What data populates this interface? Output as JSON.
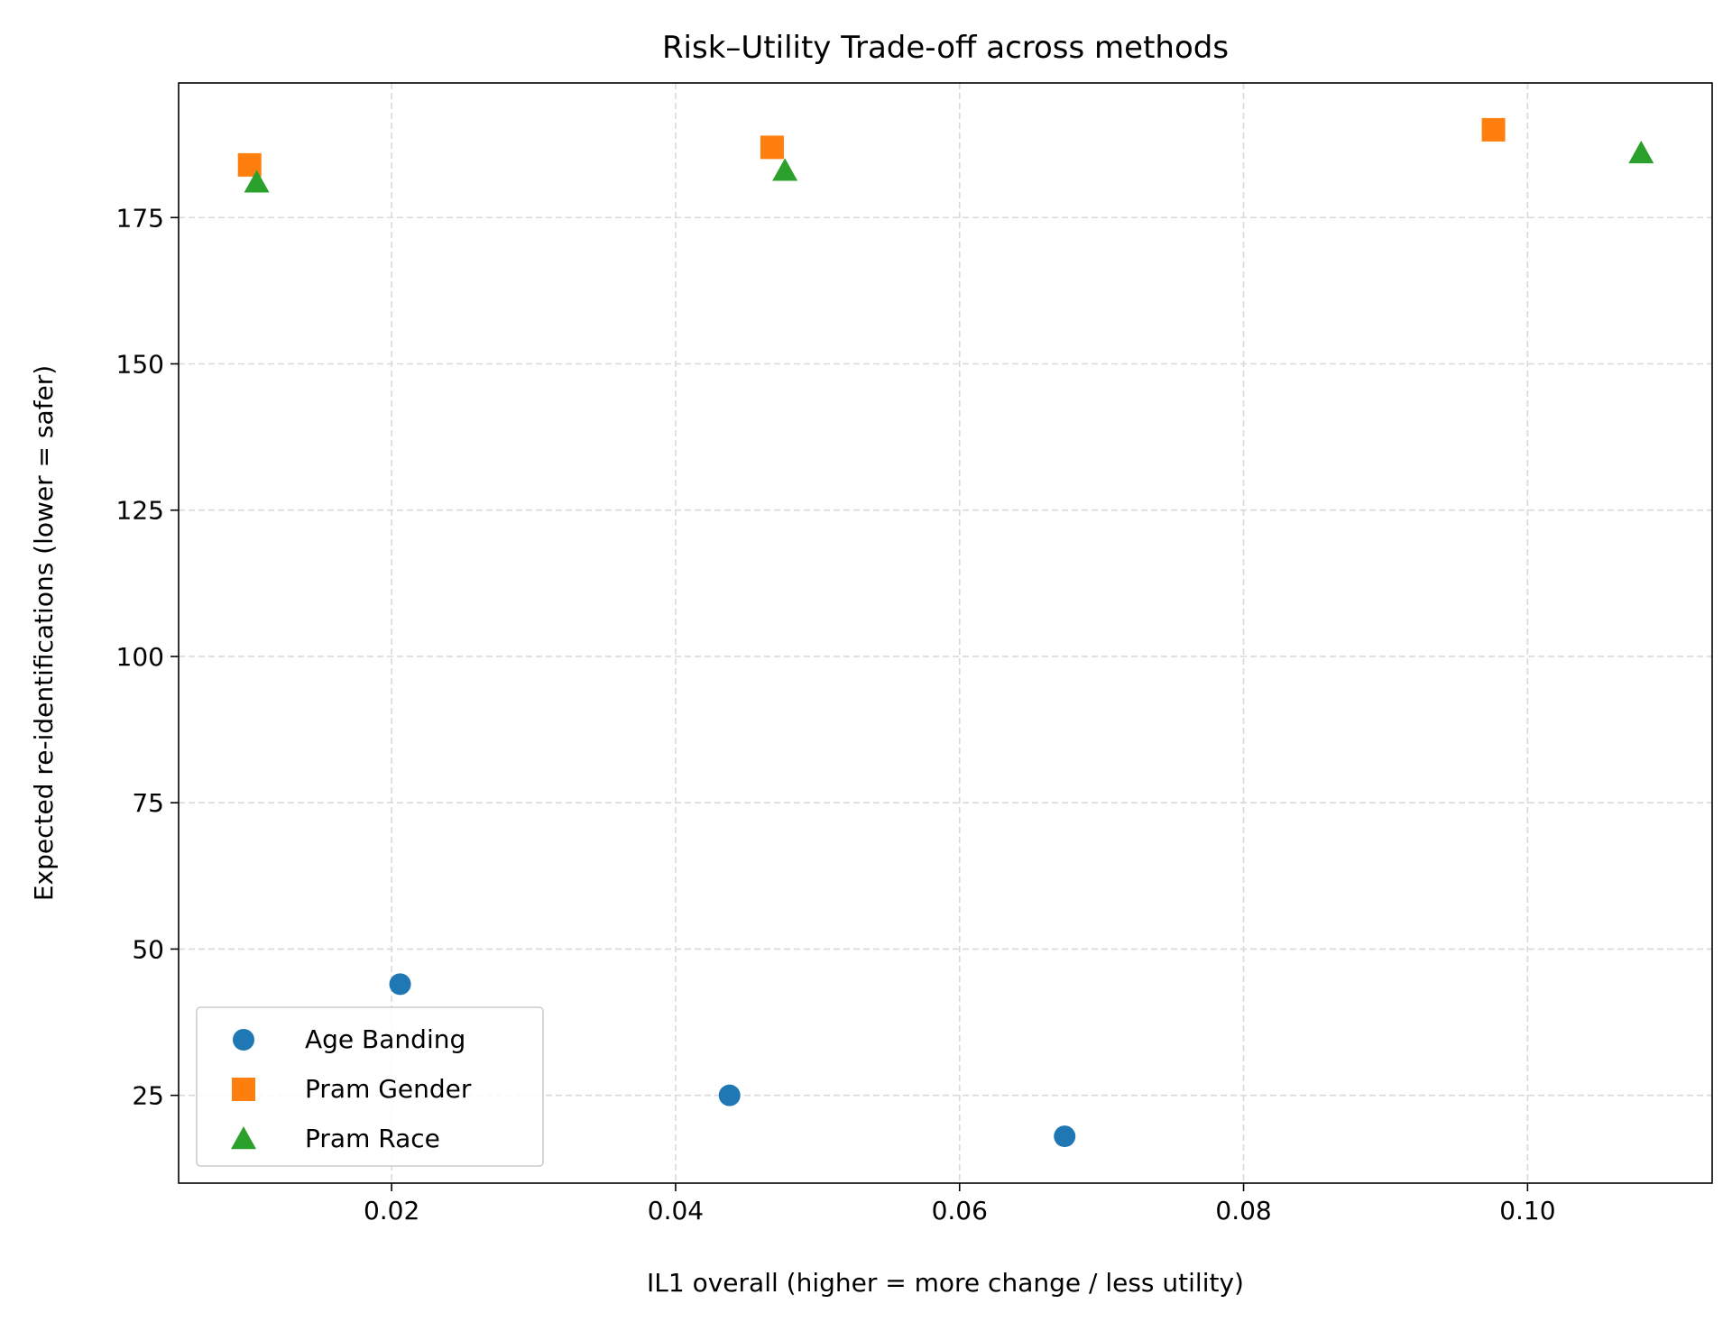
{
  "chart_data": {
    "type": "scatter",
    "title": "Risk–Utility Trade-off across methods",
    "xlabel": "IL1 overall (higher = more change / less utility)",
    "ylabel": "Expected re-identifications (lower = safer)",
    "xlim": [
      0.005,
      0.113
    ],
    "ylim": [
      10,
      198
    ],
    "xticks": [
      0.02,
      0.04,
      0.06,
      0.08,
      0.1
    ],
    "xtick_labels": [
      "0.02",
      "0.04",
      "0.06",
      "0.08",
      "0.10"
    ],
    "yticks": [
      25,
      50,
      75,
      100,
      125,
      150,
      175
    ],
    "ytick_labels": [
      "25",
      "50",
      "75",
      "100",
      "125",
      "150",
      "175"
    ],
    "grid": true,
    "legend": "lower-left",
    "series": [
      {
        "name": "Age Banding",
        "marker": "circle",
        "color": "#1f77b4",
        "points": [
          {
            "x": 0.0206,
            "y": 44
          },
          {
            "x": 0.0438,
            "y": 25
          },
          {
            "x": 0.0674,
            "y": 18
          }
        ]
      },
      {
        "name": "Pram Gender",
        "marker": "square",
        "color": "#ff7f0e",
        "points": [
          {
            "x": 0.01,
            "y": 184
          },
          {
            "x": 0.0468,
            "y": 187
          },
          {
            "x": 0.0976,
            "y": 190
          }
        ]
      },
      {
        "name": "Pram Race",
        "marker": "triangle",
        "color": "#2ca02c",
        "points": [
          {
            "x": 0.0105,
            "y": 181
          },
          {
            "x": 0.0477,
            "y": 183
          },
          {
            "x": 0.108,
            "y": 186
          }
        ]
      }
    ]
  }
}
